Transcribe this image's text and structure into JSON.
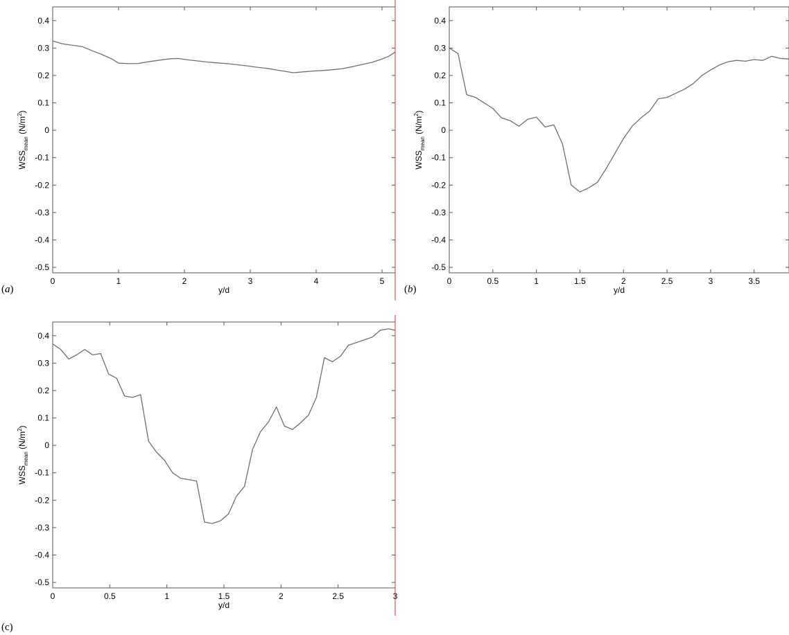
{
  "chart_data": [
    {
      "type": "line",
      "panel_label": "a",
      "xlabel": "y/d",
      "ylabel": {
        "base": "WSS",
        "subscript": "mean",
        "unit_pre": " (N/m",
        "unit_sup": "2",
        "unit_post": ")"
      },
      "xlim": [
        0,
        5.2
      ],
      "ylim": [
        -0.52,
        0.45
      ],
      "xticks": [
        0,
        1,
        2,
        3,
        4,
        5
      ],
      "xtick_labels": [
        "0",
        "1",
        "2",
        "3",
        "4",
        "5"
      ],
      "yticks": [
        -0.5,
        -0.4,
        -0.3,
        -0.2,
        -0.1,
        0,
        0.1,
        0.2,
        0.3,
        0.4
      ],
      "ytick_labels": [
        "-0.5",
        "-0.4",
        "-0.3",
        "-0.2",
        "-0.1",
        "0",
        "0.1",
        "0.2",
        "0.3",
        "0.4"
      ],
      "grid": false,
      "series": [
        {
          "x": [
            0,
            0.15,
            0.3,
            0.45,
            0.6,
            0.75,
            0.9,
            1.0,
            1.15,
            1.3,
            1.45,
            1.6,
            1.75,
            1.9,
            2.05,
            2.2,
            2.35,
            2.5,
            2.65,
            2.8,
            2.95,
            3.1,
            3.25,
            3.4,
            3.55,
            3.65,
            3.8,
            3.95,
            4.1,
            4.25,
            4.4,
            4.55,
            4.7,
            4.85,
            5.0,
            5.1,
            5.2
          ],
          "y": [
            0.326,
            0.315,
            0.31,
            0.305,
            0.29,
            0.276,
            0.26,
            0.245,
            0.243,
            0.244,
            0.25,
            0.255,
            0.26,
            0.262,
            0.257,
            0.253,
            0.249,
            0.246,
            0.243,
            0.239,
            0.235,
            0.23,
            0.226,
            0.22,
            0.214,
            0.21,
            0.213,
            0.216,
            0.218,
            0.221,
            0.225,
            0.232,
            0.24,
            0.248,
            0.26,
            0.27,
            0.285
          ]
        }
      ]
    },
    {
      "type": "line",
      "panel_label": "b",
      "xlabel": "y/d",
      "ylabel": {
        "base": "WSS",
        "subscript": "mean",
        "unit_pre": " (N/m",
        "unit_sup": "2",
        "unit_post": ")"
      },
      "xlim": [
        0,
        3.9
      ],
      "ylim": [
        -0.52,
        0.45
      ],
      "xticks": [
        0,
        0.5,
        1,
        1.5,
        2,
        2.5,
        3,
        3.5
      ],
      "xtick_labels": [
        "0",
        "0.5",
        "1",
        "1.5",
        "2",
        "2.5",
        "3",
        "3.5"
      ],
      "yticks": [
        -0.5,
        -0.4,
        -0.3,
        -0.2,
        -0.1,
        0,
        0.1,
        0.2,
        0.3,
        0.4
      ],
      "ytick_labels": [
        "-0.5",
        "-0.4",
        "-0.3",
        "-0.2",
        "-0.1",
        "0",
        "0.1",
        "0.2",
        "0.3",
        "0.4"
      ],
      "grid": false,
      "series": [
        {
          "x": [
            0,
            0.1,
            0.2,
            0.3,
            0.4,
            0.5,
            0.6,
            0.7,
            0.8,
            0.9,
            1.0,
            1.1,
            1.2,
            1.3,
            1.4,
            1.5,
            1.6,
            1.7,
            1.8,
            1.9,
            2.0,
            2.1,
            2.2,
            2.3,
            2.4,
            2.5,
            2.6,
            2.7,
            2.8,
            2.9,
            3.0,
            3.1,
            3.2,
            3.3,
            3.4,
            3.5,
            3.6,
            3.7,
            3.8,
            3.9
          ],
          "y": [
            0.3,
            0.28,
            0.13,
            0.12,
            0.1,
            0.08,
            0.045,
            0.035,
            0.015,
            0.04,
            0.048,
            0.012,
            0.02,
            -0.05,
            -0.2,
            -0.225,
            -0.21,
            -0.19,
            -0.14,
            -0.085,
            -0.03,
            0.015,
            0.045,
            0.07,
            0.115,
            0.12,
            0.135,
            0.15,
            0.17,
            0.2,
            0.22,
            0.238,
            0.25,
            0.255,
            0.252,
            0.258,
            0.255,
            0.27,
            0.262,
            0.26
          ]
        }
      ]
    },
    {
      "type": "line",
      "panel_label": "c",
      "xlabel": "y/d",
      "ylabel": {
        "base": "WSS",
        "subscript": "mean",
        "unit_pre": " (N/m",
        "unit_sup": "2",
        "unit_post": ")"
      },
      "xlim": [
        0,
        3
      ],
      "ylim": [
        -0.52,
        0.45
      ],
      "xticks": [
        0,
        0.5,
        1,
        1.5,
        2,
        2.5,
        3
      ],
      "xtick_labels": [
        "0",
        "0.5",
        "1",
        "1.5",
        "2",
        "2.5",
        "3"
      ],
      "yticks": [
        -0.5,
        -0.4,
        -0.3,
        -0.2,
        -0.1,
        0,
        0.1,
        0.2,
        0.3,
        0.4
      ],
      "ytick_labels": [
        "-0.5",
        "-0.4",
        "-0.3",
        "-0.2",
        "-0.1",
        "0",
        "0.1",
        "0.2",
        "0.3",
        "0.4"
      ],
      "grid": false,
      "series": [
        {
          "x": [
            0,
            0.07,
            0.14,
            0.21,
            0.28,
            0.35,
            0.42,
            0.49,
            0.56,
            0.63,
            0.7,
            0.77,
            0.84,
            0.91,
            0.98,
            1.05,
            1.12,
            1.19,
            1.26,
            1.33,
            1.4,
            1.47,
            1.54,
            1.61,
            1.68,
            1.75,
            1.82,
            1.89,
            1.96,
            2.03,
            2.1,
            2.17,
            2.24,
            2.31,
            2.38,
            2.45,
            2.52,
            2.59,
            2.66,
            2.73,
            2.8,
            2.87,
            2.94,
            3.0
          ],
          "y": [
            0.37,
            0.35,
            0.315,
            0.33,
            0.35,
            0.33,
            0.335,
            0.26,
            0.245,
            0.18,
            0.175,
            0.185,
            0.015,
            -0.025,
            -0.055,
            -0.1,
            -0.12,
            -0.125,
            -0.13,
            -0.28,
            -0.285,
            -0.275,
            -0.25,
            -0.185,
            -0.15,
            -0.015,
            0.05,
            0.085,
            0.14,
            0.07,
            0.058,
            0.082,
            0.11,
            0.175,
            0.32,
            0.305,
            0.325,
            0.365,
            0.375,
            0.385,
            0.395,
            0.42,
            0.425,
            0.42
          ]
        }
      ]
    }
  ]
}
